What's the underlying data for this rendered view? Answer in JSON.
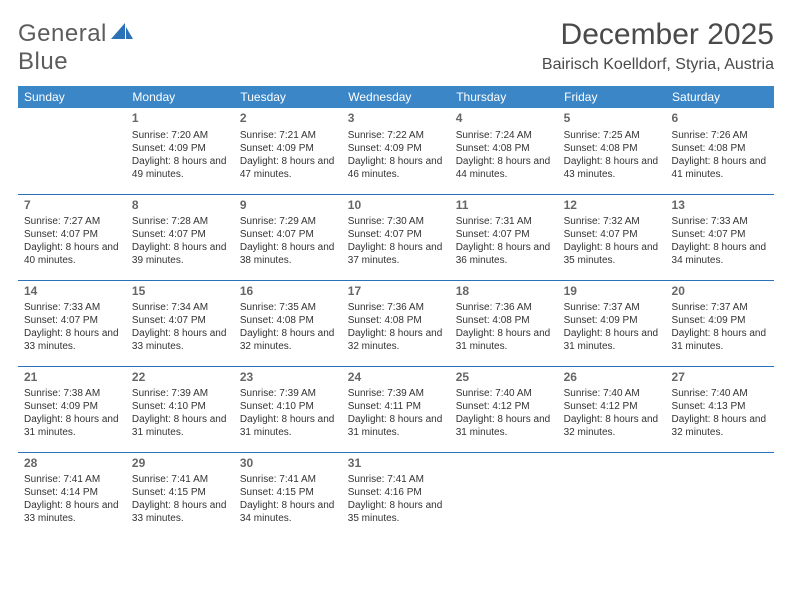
{
  "logo": {
    "word1": "General",
    "word2": "Blue",
    "word1_color": "#5c5c5c",
    "word2_color": "#2a71b8",
    "sail_fill": "#2a71b8"
  },
  "title": "December 2025",
  "location": "Bairisch Koelldorf, Styria, Austria",
  "colors": {
    "header_bg": "#3b86c6",
    "header_text": "#ffffff",
    "row_divider": "#2a71b8",
    "daynum": "#666666",
    "body_text": "#333333",
    "title_color": "#4a4a4a",
    "background": "#ffffff"
  },
  "typography": {
    "title_fontsize": 30,
    "location_fontsize": 16,
    "dayheader_fontsize": 12,
    "daynum_fontsize": 12,
    "cell_fontsize": 10,
    "logo_fontsize": 24
  },
  "day_headers": [
    "Sunday",
    "Monday",
    "Tuesday",
    "Wednesday",
    "Thursday",
    "Friday",
    "Saturday"
  ],
  "weeks": [
    [
      {
        "day": "",
        "lines": []
      },
      {
        "day": "1",
        "lines": [
          "Sunrise: 7:20 AM",
          "Sunset: 4:09 PM",
          "Daylight: 8 hours and 49 minutes."
        ]
      },
      {
        "day": "2",
        "lines": [
          "Sunrise: 7:21 AM",
          "Sunset: 4:09 PM",
          "Daylight: 8 hours and 47 minutes."
        ]
      },
      {
        "day": "3",
        "lines": [
          "Sunrise: 7:22 AM",
          "Sunset: 4:09 PM",
          "Daylight: 8 hours and 46 minutes."
        ]
      },
      {
        "day": "4",
        "lines": [
          "Sunrise: 7:24 AM",
          "Sunset: 4:08 PM",
          "Daylight: 8 hours and 44 minutes."
        ]
      },
      {
        "day": "5",
        "lines": [
          "Sunrise: 7:25 AM",
          "Sunset: 4:08 PM",
          "Daylight: 8 hours and 43 minutes."
        ]
      },
      {
        "day": "6",
        "lines": [
          "Sunrise: 7:26 AM",
          "Sunset: 4:08 PM",
          "Daylight: 8 hours and 41 minutes."
        ]
      }
    ],
    [
      {
        "day": "7",
        "lines": [
          "Sunrise: 7:27 AM",
          "Sunset: 4:07 PM",
          "Daylight: 8 hours and 40 minutes."
        ]
      },
      {
        "day": "8",
        "lines": [
          "Sunrise: 7:28 AM",
          "Sunset: 4:07 PM",
          "Daylight: 8 hours and 39 minutes."
        ]
      },
      {
        "day": "9",
        "lines": [
          "Sunrise: 7:29 AM",
          "Sunset: 4:07 PM",
          "Daylight: 8 hours and 38 minutes."
        ]
      },
      {
        "day": "10",
        "lines": [
          "Sunrise: 7:30 AM",
          "Sunset: 4:07 PM",
          "Daylight: 8 hours and 37 minutes."
        ]
      },
      {
        "day": "11",
        "lines": [
          "Sunrise: 7:31 AM",
          "Sunset: 4:07 PM",
          "Daylight: 8 hours and 36 minutes."
        ]
      },
      {
        "day": "12",
        "lines": [
          "Sunrise: 7:32 AM",
          "Sunset: 4:07 PM",
          "Daylight: 8 hours and 35 minutes."
        ]
      },
      {
        "day": "13",
        "lines": [
          "Sunrise: 7:33 AM",
          "Sunset: 4:07 PM",
          "Daylight: 8 hours and 34 minutes."
        ]
      }
    ],
    [
      {
        "day": "14",
        "lines": [
          "Sunrise: 7:33 AM",
          "Sunset: 4:07 PM",
          "Daylight: 8 hours and 33 minutes."
        ]
      },
      {
        "day": "15",
        "lines": [
          "Sunrise: 7:34 AM",
          "Sunset: 4:07 PM",
          "Daylight: 8 hours and 33 minutes."
        ]
      },
      {
        "day": "16",
        "lines": [
          "Sunrise: 7:35 AM",
          "Sunset: 4:08 PM",
          "Daylight: 8 hours and 32 minutes."
        ]
      },
      {
        "day": "17",
        "lines": [
          "Sunrise: 7:36 AM",
          "Sunset: 4:08 PM",
          "Daylight: 8 hours and 32 minutes."
        ]
      },
      {
        "day": "18",
        "lines": [
          "Sunrise: 7:36 AM",
          "Sunset: 4:08 PM",
          "Daylight: 8 hours and 31 minutes."
        ]
      },
      {
        "day": "19",
        "lines": [
          "Sunrise: 7:37 AM",
          "Sunset: 4:09 PM",
          "Daylight: 8 hours and 31 minutes."
        ]
      },
      {
        "day": "20",
        "lines": [
          "Sunrise: 7:37 AM",
          "Sunset: 4:09 PM",
          "Daylight: 8 hours and 31 minutes."
        ]
      }
    ],
    [
      {
        "day": "21",
        "lines": [
          "Sunrise: 7:38 AM",
          "Sunset: 4:09 PM",
          "Daylight: 8 hours and 31 minutes."
        ]
      },
      {
        "day": "22",
        "lines": [
          "Sunrise: 7:39 AM",
          "Sunset: 4:10 PM",
          "Daylight: 8 hours and 31 minutes."
        ]
      },
      {
        "day": "23",
        "lines": [
          "Sunrise: 7:39 AM",
          "Sunset: 4:10 PM",
          "Daylight: 8 hours and 31 minutes."
        ]
      },
      {
        "day": "24",
        "lines": [
          "Sunrise: 7:39 AM",
          "Sunset: 4:11 PM",
          "Daylight: 8 hours and 31 minutes."
        ]
      },
      {
        "day": "25",
        "lines": [
          "Sunrise: 7:40 AM",
          "Sunset: 4:12 PM",
          "Daylight: 8 hours and 31 minutes."
        ]
      },
      {
        "day": "26",
        "lines": [
          "Sunrise: 7:40 AM",
          "Sunset: 4:12 PM",
          "Daylight: 8 hours and 32 minutes."
        ]
      },
      {
        "day": "27",
        "lines": [
          "Sunrise: 7:40 AM",
          "Sunset: 4:13 PM",
          "Daylight: 8 hours and 32 minutes."
        ]
      }
    ],
    [
      {
        "day": "28",
        "lines": [
          "Sunrise: 7:41 AM",
          "Sunset: 4:14 PM",
          "Daylight: 8 hours and 33 minutes."
        ]
      },
      {
        "day": "29",
        "lines": [
          "Sunrise: 7:41 AM",
          "Sunset: 4:15 PM",
          "Daylight: 8 hours and 33 minutes."
        ]
      },
      {
        "day": "30",
        "lines": [
          "Sunrise: 7:41 AM",
          "Sunset: 4:15 PM",
          "Daylight: 8 hours and 34 minutes."
        ]
      },
      {
        "day": "31",
        "lines": [
          "Sunrise: 7:41 AM",
          "Sunset: 4:16 PM",
          "Daylight: 8 hours and 35 minutes."
        ]
      },
      {
        "day": "",
        "lines": []
      },
      {
        "day": "",
        "lines": []
      },
      {
        "day": "",
        "lines": []
      }
    ]
  ]
}
